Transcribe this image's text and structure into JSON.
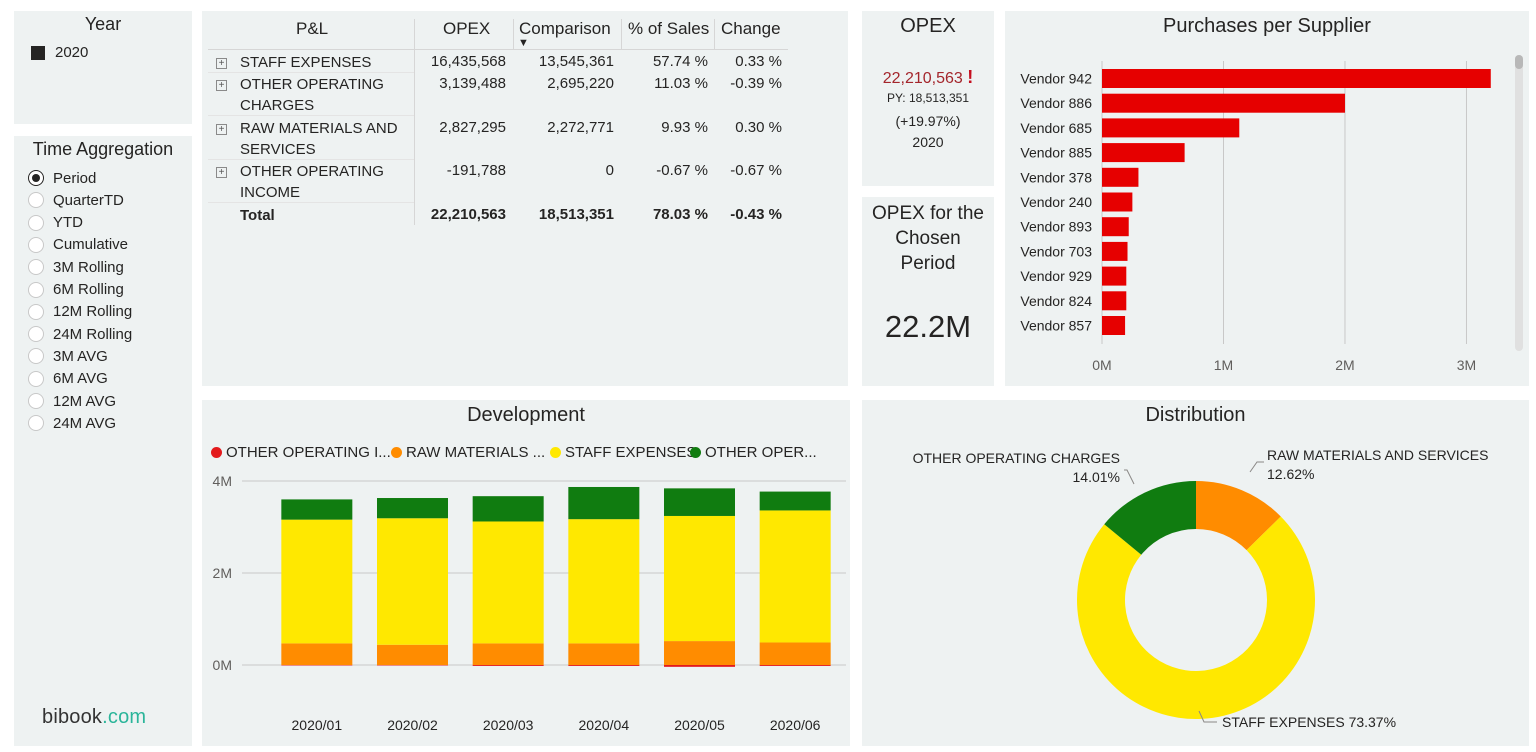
{
  "year_slicer": {
    "title": "Year",
    "items": [
      {
        "label": "2020",
        "selected": true
      }
    ]
  },
  "time_aggregation": {
    "title": "Time Aggregation",
    "options": [
      "Period",
      "QuarterTD",
      "YTD",
      "Cumulative",
      "3M Rolling",
      "6M Rolling",
      "12M Rolling",
      "24M Rolling",
      "3M AVG",
      "6M AVG",
      "12M AVG",
      "24M AVG"
    ],
    "selected": "Period"
  },
  "brand": {
    "prefix": "bibook",
    "suffix": ".com"
  },
  "pl_table": {
    "columns": [
      "P&L",
      "OPEX",
      "Comparison",
      "% of Sales",
      "Change"
    ],
    "sort_indicator": "▼",
    "rows": [
      {
        "label": "STAFF EXPENSES",
        "opex": "16,435,568",
        "comparison": "13,545,361",
        "pct_sales": "57.74 %",
        "change": "0.33 %"
      },
      {
        "label": "OTHER OPERATING CHARGES",
        "opex": "3,139,488",
        "comparison": "2,695,220",
        "pct_sales": "11.03 %",
        "change": "-0.39 %"
      },
      {
        "label": "RAW MATERIALS AND SERVICES",
        "opex": "2,827,295",
        "comparison": "2,272,771",
        "pct_sales": "9.93 %",
        "change": "0.30 %"
      },
      {
        "label": "OTHER OPERATING INCOME",
        "opex": "-191,788",
        "comparison": "0",
        "pct_sales": "-0.67 %",
        "change": "-0.67 %"
      }
    ],
    "total": {
      "label": "Total",
      "opex": "22,210,563",
      "comparison": "18,513,351",
      "pct_sales": "78.03 %",
      "change": "-0.43 %"
    },
    "expand_icon": "+"
  },
  "opex_card": {
    "title": "OPEX",
    "value": "22,210,563",
    "alert": "!",
    "py": "PY: 18,513,351",
    "change": "(+19.97%)",
    "year": "2020",
    "value_color": "#a4262c"
  },
  "opex_period_card": {
    "title": "OPEX for the Chosen Period",
    "value": "22.2M"
  },
  "chart_data": [
    {
      "type": "bar",
      "orientation": "horizontal",
      "title": "Purchases per Supplier",
      "categories": [
        "Vendor 942",
        "Vendor 886",
        "Vendor 685",
        "Vendor 885",
        "Vendor 378",
        "Vendor 240",
        "Vendor 893",
        "Vendor 703",
        "Vendor 929",
        "Vendor 824",
        "Vendor 857"
      ],
      "values": [
        3.2,
        2.0,
        1.13,
        0.68,
        0.3,
        0.25,
        0.22,
        0.21,
        0.2,
        0.2,
        0.19
      ],
      "value_unit": "M",
      "xticks": [
        "0M",
        "1M",
        "2M",
        "3M"
      ],
      "xlim": [
        0,
        3.35
      ],
      "grid": true,
      "color": "#e60000"
    },
    {
      "type": "bar",
      "stacked": true,
      "title": "Development",
      "categories": [
        "2020/01",
        "2020/02",
        "2020/03",
        "2020/04",
        "2020/05",
        "2020/06"
      ],
      "series": [
        {
          "name": "OTHER OPERATING I...",
          "color": "#e31a1c",
          "values": [
            -0.01,
            -0.01,
            -0.02,
            -0.02,
            -0.04,
            -0.02
          ]
        },
        {
          "name": "RAW MATERIALS ...",
          "color": "#ff8c00",
          "values": [
            0.47,
            0.44,
            0.47,
            0.47,
            0.52,
            0.49
          ]
        },
        {
          "name": "STAFF EXPENSES",
          "color": "#ffe800",
          "values": [
            2.69,
            2.75,
            2.65,
            2.7,
            2.72,
            2.87
          ]
        },
        {
          "name": "OTHER OPER...",
          "color": "#107c10",
          "values": [
            0.44,
            0.44,
            0.55,
            0.7,
            0.6,
            0.41
          ]
        }
      ],
      "yticks": [
        "4M",
        "2M",
        "0M"
      ],
      "ylim": [
        -0.05,
        4.0
      ],
      "grid": true,
      "value_unit": "M"
    },
    {
      "type": "pie",
      "donut": true,
      "title": "Distribution",
      "slices": [
        {
          "label": "RAW MATERIALS AND SERVICES",
          "value": 12.62,
          "pct_label": "12.62%",
          "color": "#ff8c00"
        },
        {
          "label": "STAFF EXPENSES",
          "value": 73.37,
          "pct_label": "73.37%",
          "color": "#ffe800"
        },
        {
          "label": "OTHER OPERATING CHARGES",
          "value": 14.01,
          "pct_label": "14.01%",
          "color": "#107c10"
        }
      ]
    }
  ]
}
